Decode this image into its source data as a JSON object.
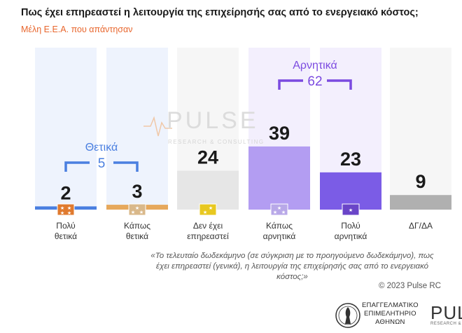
{
  "title": "Πως έχει επηρεαστεί η λειτουργία της επιχείρησής σας από το ενεργειακό κόστος;",
  "subtitle": "Μέλη Ε.Ε.Α. που απάντησαν",
  "chart_data": {
    "type": "bar",
    "categories": [
      [
        "Πολύ",
        "θετικά"
      ],
      [
        "Κάπως",
        "θετικά"
      ],
      [
        "Δεν έχει",
        "επηρεαστεί"
      ],
      [
        "Κάπως",
        "αρνητικά"
      ],
      [
        "Πολύ",
        "αρνητικά"
      ],
      [
        "ΔΓ/ΔΑ"
      ]
    ],
    "values": [
      2,
      3,
      24,
      39,
      23,
      9
    ],
    "ylim": [
      0,
      100
    ],
    "groups": [
      {
        "label": "Θετικά",
        "total": "5",
        "members": [
          0,
          1
        ],
        "color": "#4a7fe0"
      },
      {
        "label": "Αρνητικά",
        "total": "62",
        "members": [
          3,
          4
        ],
        "color": "#7b4ae0"
      }
    ],
    "bar_colors": [
      "#4a7fe0",
      "#e6a85c",
      "#e6e6e6",
      "#b39df2",
      "#7b5ce6",
      "#b0b0b0"
    ],
    "background_colors": [
      "#eef3fd",
      "#eef3fd",
      "#f6f6f6",
      "#f3effd",
      "#f3effd",
      "#f6f6f6"
    ],
    "icon_colors": [
      "#e07a2e",
      "#d9b88a",
      "#e8c820",
      "#b8a8e8",
      "#6a45c8",
      "#bbbbbb"
    ],
    "icons": [
      "stars-4-icon",
      "stars-3-icon",
      "stars-2-icon",
      "stars-3-icon",
      "star-1-icon",
      ""
    ]
  },
  "watermark": {
    "name": "PULSE",
    "tagline": "RESEARCH & CONSULTING"
  },
  "footnote": "«Το τελευταίο δωδεκάμηνο (σε σύγκριση με το προηγούμενο δωδεκάμηνο), πως έχει επηρεαστεί (γενικά), η λειτουργία της επιχείρησής σας από το ενεργειακό κόστος;»",
  "copyright": "© 2023 Pulse RC",
  "chamber": {
    "line1": "ΕΠΑΓΓΕΛΜΑΤΙΚΟ",
    "line2": "ΕΠΙΜΕΛΗΤΗΡΙΟ",
    "line3": "ΑΘΗΝΩΝ"
  },
  "pulse_logo": {
    "name": "PUL",
    "tagline": "RESEARCH & CI"
  }
}
